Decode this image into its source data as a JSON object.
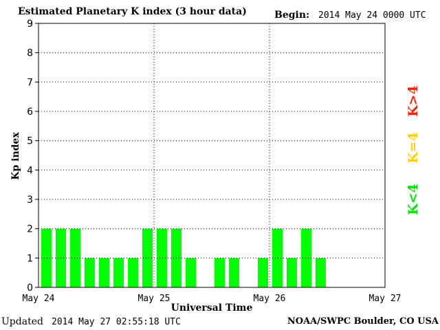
{
  "header": {
    "title": "Estimated Planetary K index (3 hour data)",
    "begin_label": "Begin:",
    "begin_value": "2014 May 24 0000 UTC"
  },
  "footer": {
    "updated_label": "Updated",
    "updated_value": "2014 May 27 02:55:18 UTC",
    "source": "NOAA/SWPC Boulder, CO USA"
  },
  "legend": [
    {
      "label": "K>4",
      "color": "#ff2200"
    },
    {
      "label": "K=4",
      "color": "#ffd000"
    },
    {
      "label": "K<4",
      "color": "#00e400"
    }
  ],
  "chart_data": {
    "type": "bar",
    "title": "Estimated Planetary K index (3 hour data)",
    "xlabel": "Universal Time",
    "ylabel": "Kp index",
    "ylim": [
      0,
      9
    ],
    "yticks": [
      0,
      1,
      2,
      3,
      4,
      5,
      6,
      7,
      8,
      9
    ],
    "xticks": [
      "May 24",
      "May 25",
      "May 26",
      "May 27"
    ],
    "grid": true,
    "bar_color": "#00ff00",
    "intervals_per_day": 8,
    "days": 3,
    "values": [
      2,
      2,
      2,
      1,
      1,
      1,
      1,
      2,
      2,
      2,
      1,
      null,
      1,
      1,
      null,
      1,
      2,
      1,
      2,
      1,
      null,
      null,
      null,
      null
    ]
  }
}
